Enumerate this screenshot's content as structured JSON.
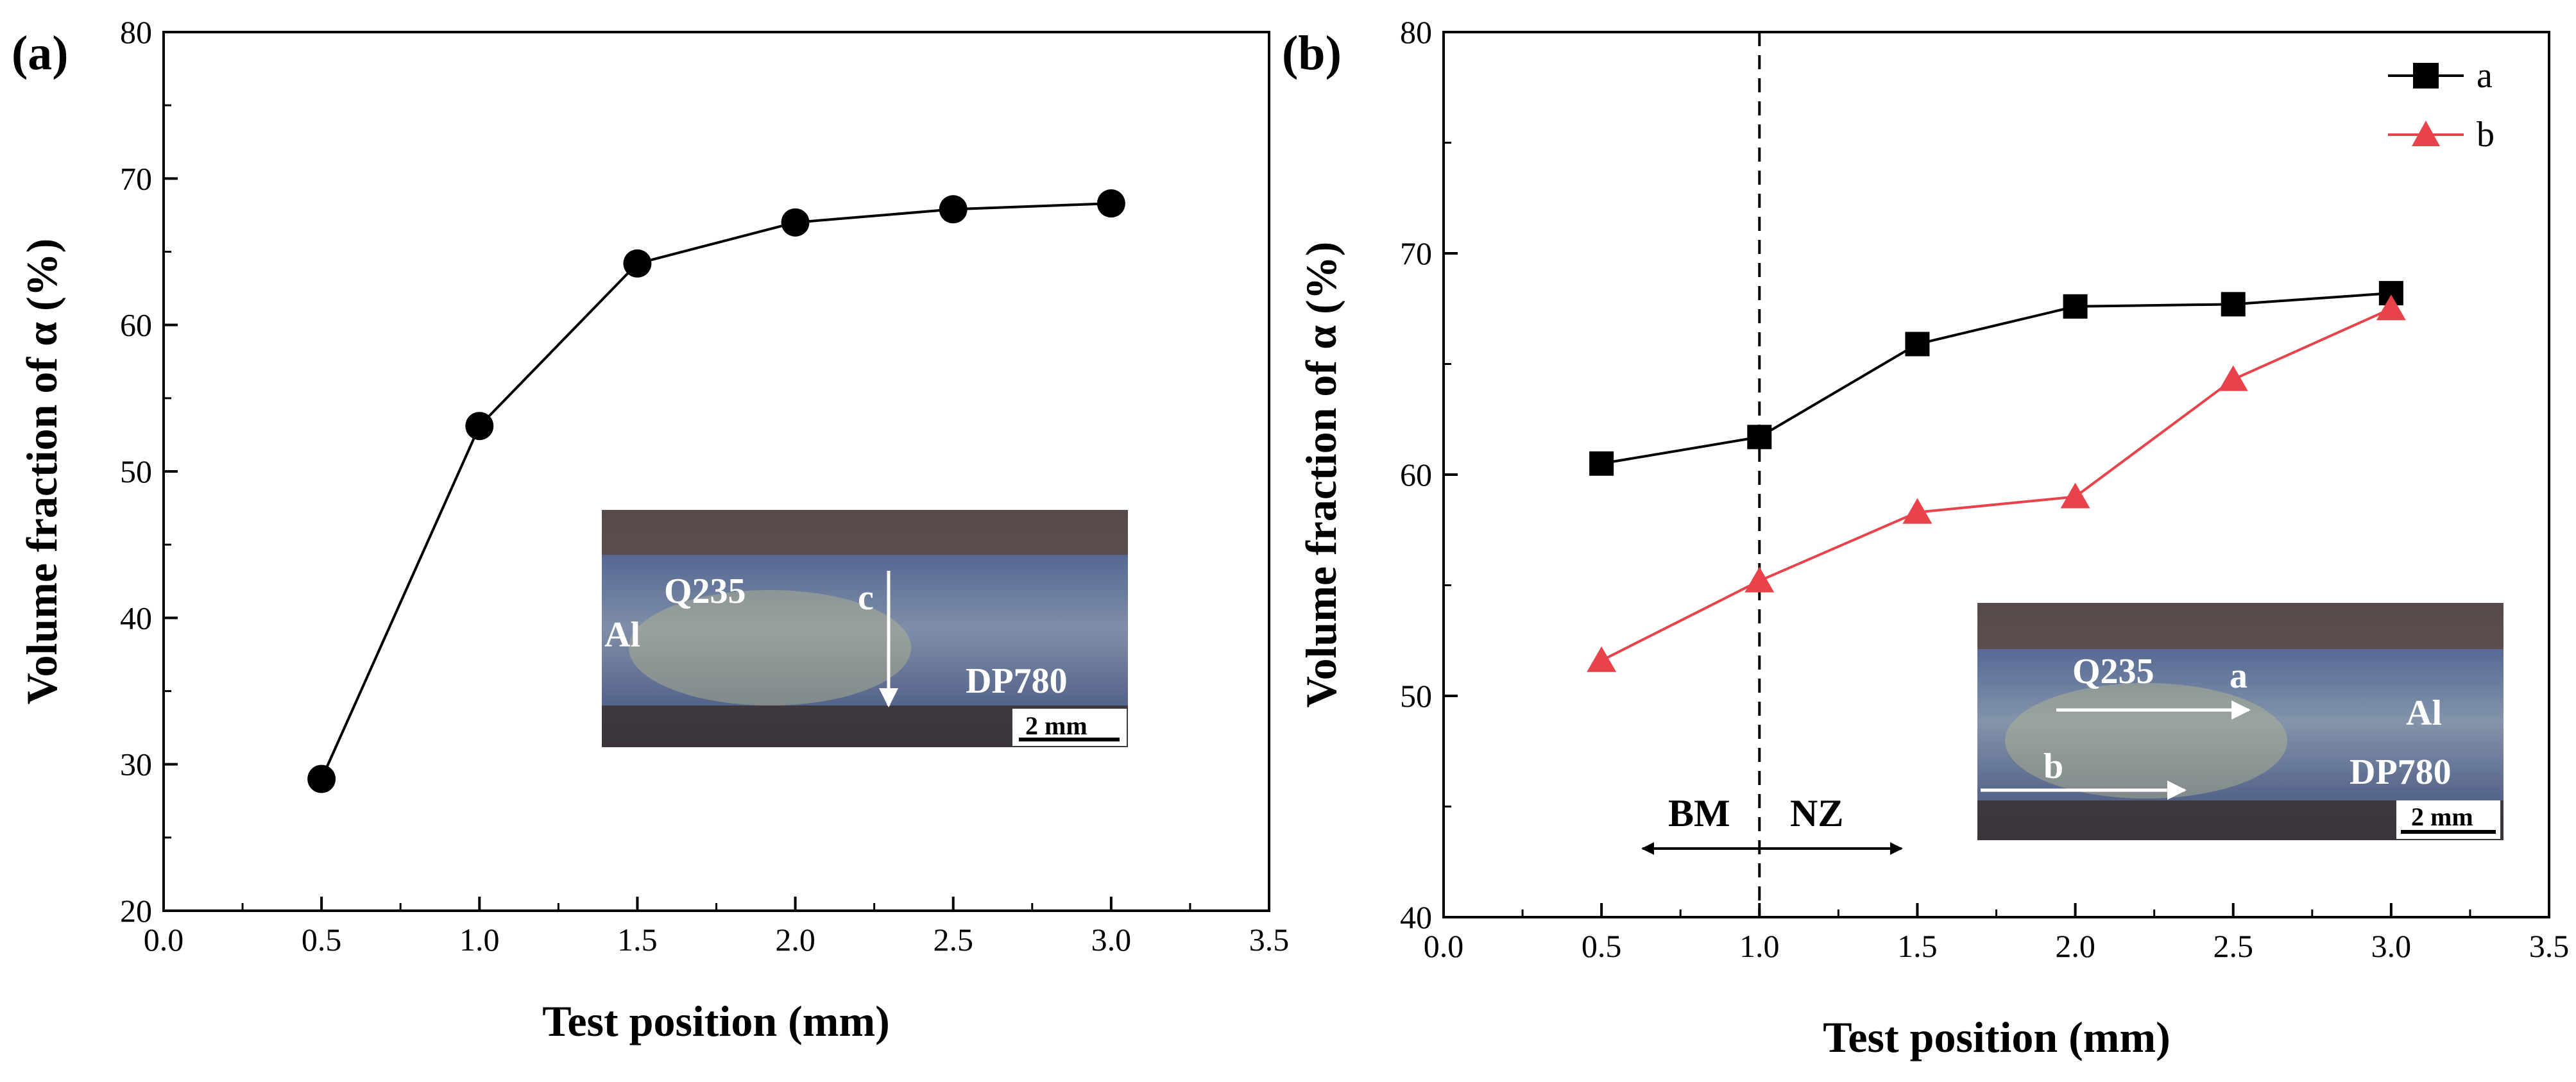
{
  "chart_data": [
    {
      "type": "line",
      "panel_label": "(a)",
      "xlabel": "Test position (mm)",
      "ylabel": "Volume fraction of α (%)",
      "xlim": [
        0.0,
        3.5
      ],
      "ylim": [
        20,
        80
      ],
      "x_ticks": [
        "0.0",
        "0.5",
        "1.0",
        "1.5",
        "2.0",
        "2.5",
        "3.0",
        "3.5"
      ],
      "y_ticks": [
        "20",
        "30",
        "40",
        "50",
        "60",
        "70",
        "80"
      ],
      "grid": false,
      "series": [
        {
          "marker": "circle",
          "color": "#000000",
          "x": [
            0.5,
            1.0,
            1.5,
            2.0,
            2.5,
            3.0
          ],
          "y": [
            29.0,
            53.1,
            64.2,
            67.0,
            67.9,
            68.3
          ]
        }
      ],
      "inset": {
        "labels": [
          "Q235",
          "c",
          "Al",
          "DP780"
        ],
        "scale_bar": "2 mm"
      }
    },
    {
      "type": "line",
      "panel_label": "(b)",
      "xlabel": "Test position (mm)",
      "ylabel": "Volume fraction of α (%)",
      "xlim": [
        0.0,
        3.5
      ],
      "ylim": [
        40,
        80
      ],
      "x_ticks": [
        "0.0",
        "0.5",
        "1.0",
        "1.5",
        "2.0",
        "2.5",
        "3.0",
        "3.5"
      ],
      "y_ticks": [
        "40",
        "50",
        "60",
        "70",
        "80"
      ],
      "grid": false,
      "legend_position": "top-right",
      "series": [
        {
          "name": "a",
          "marker": "square",
          "color": "#000000",
          "x": [
            0.5,
            1.0,
            1.5,
            2.0,
            2.5,
            3.0
          ],
          "y": [
            60.5,
            61.7,
            65.9,
            67.6,
            67.7,
            68.2
          ]
        },
        {
          "name": "b",
          "marker": "triangle",
          "color": "#e8434a",
          "x": [
            0.5,
            1.0,
            1.5,
            2.0,
            2.5,
            3.0
          ],
          "y": [
            51.6,
            55.2,
            58.3,
            59.0,
            64.3,
            67.5
          ]
        }
      ],
      "boundary_x": 1.0,
      "zone_labels": [
        "BM",
        "NZ"
      ],
      "zone_arrow_range": [
        0.63,
        1.45
      ],
      "inset": {
        "labels": [
          "Q235",
          "a",
          "b",
          "Al",
          "DP780"
        ],
        "scale_bar": "2 mm"
      }
    }
  ]
}
